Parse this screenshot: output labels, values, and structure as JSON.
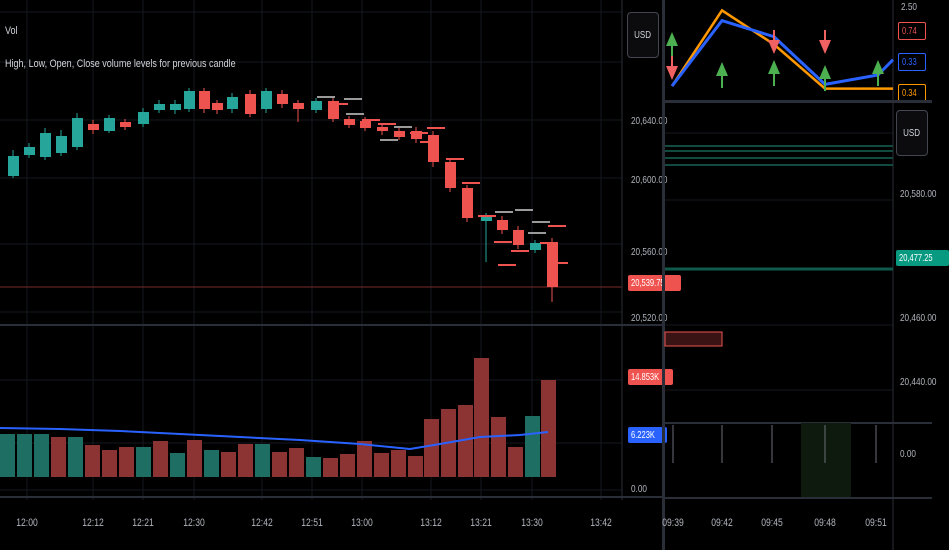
{
  "main_chart": {
    "indicator_name": "Vol",
    "indicator_desc": "High, Low, Open, Close volume levels for previous candle",
    "currency_button": "USD",
    "price_ticks": [
      "20,640.00",
      "20,600.00",
      "20,560.00",
      "20,520.00"
    ],
    "last_price_badge": "20,539.75",
    "volume_badge_red": "14.853K",
    "volume_badge_blue": "6.223K",
    "volume_zero": "0.00",
    "time_labels": [
      "12:00",
      "12:12",
      "12:21",
      "12:30",
      "12:42",
      "12:51",
      "13:00",
      "13:12",
      "13:21",
      "13:30",
      "13:42"
    ],
    "colors": {
      "up": "#26a69a",
      "down": "#ef5350",
      "volume_ma": "#2962ff"
    }
  },
  "right_top_panel": {
    "ticks": [
      "2.50",
      "0.74",
      "0.33",
      "0.34"
    ],
    "badge_colors": [
      "#ef5350",
      "#2962ff",
      "#ff9800"
    ],
    "blue_series": [
      0.07,
      0.84,
      0.65,
      0.09,
      0.2
    ],
    "orange_series": [
      0.07,
      0.96,
      0.56,
      0.04,
      0.04
    ],
    "colors": {
      "blue": "#2962ff",
      "orange": "#ff9800"
    }
  },
  "right_bottom_panel": {
    "currency_button": "USD",
    "price_ticks": [
      "20,580.00",
      "20,460.00",
      "20,440.00"
    ],
    "price_badge": "20,477.25",
    "zero_label": "0.00",
    "time_labels": [
      "09:39",
      "09:42",
      "09:45",
      "09:48",
      "09:51"
    ]
  }
}
